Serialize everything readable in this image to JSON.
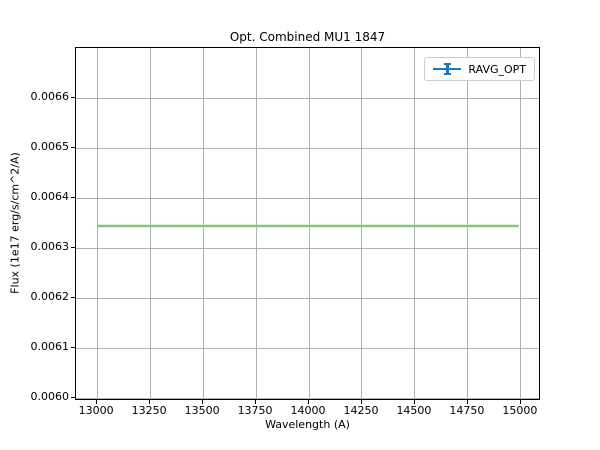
{
  "chart_data": {
    "type": "line",
    "title": "Opt. Combined MU1 1847",
    "xlabel": "Wavelength (A)",
    "ylabel": "Flux (1e17 erg/s/cm^2/A)",
    "xlim": [
      12900,
      15095
    ],
    "ylim": [
      0.005994,
      0.0067
    ],
    "grid": true,
    "xticks": [
      13000,
      13250,
      13500,
      13750,
      14000,
      14250,
      14500,
      14750,
      15000
    ],
    "xtick_labels": [
      "13000",
      "13250",
      "13500",
      "13750",
      "14000",
      "14250",
      "14500",
      "14750",
      "15000"
    ],
    "yticks": [
      0.006,
      0.0061,
      0.0062,
      0.0063,
      0.0064,
      0.0065,
      0.0066
    ],
    "ytick_labels": [
      "0.0060",
      "0.0061",
      "0.0062",
      "0.0063",
      "0.0064",
      "0.0065",
      "0.0066"
    ],
    "series": [
      {
        "name": "RAVG_OPT",
        "x": [
          13000,
          15000
        ],
        "y": [
          0.006342,
          0.006342
        ],
        "line_color": "#7fc87f",
        "line_width": 2.5
      }
    ],
    "legend": {
      "position": "upper right",
      "entries": [
        {
          "label": "RAVG_OPT",
          "marker": "errorbar-line",
          "color": "#1f77b4"
        }
      ]
    },
    "colors": {
      "grid": "#b0b0b0",
      "spine": "#000000",
      "legend_border": "#cccccc",
      "background": "#ffffff"
    }
  }
}
